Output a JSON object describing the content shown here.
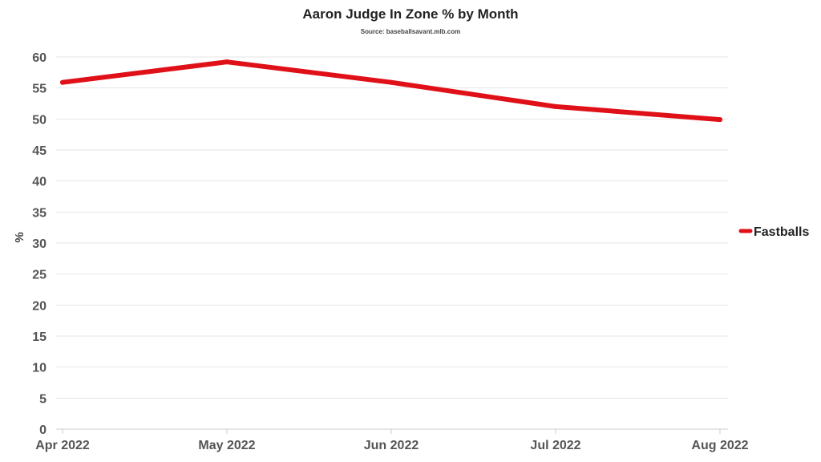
{
  "chart_data": {
    "type": "line",
    "title": "Aaron Judge In Zone % by Month",
    "subtitle": "Source: baseballsavant.mlb.com",
    "xlabel": "",
    "ylabel": "%",
    "categories": [
      "Apr 2022",
      "May 2022",
      "Jun 2022",
      "Jul 2022",
      "Aug 2022"
    ],
    "series": [
      {
        "name": "Fastballs",
        "values": [
          55.9,
          59.2,
          55.9,
          52.0,
          49.9
        ],
        "color": "#e01018"
      }
    ],
    "ylim": [
      0,
      60
    ],
    "yticks": [
      0,
      5,
      10,
      15,
      20,
      25,
      30,
      35,
      40,
      45,
      50,
      55,
      60
    ],
    "grid": true,
    "legend": "right"
  }
}
